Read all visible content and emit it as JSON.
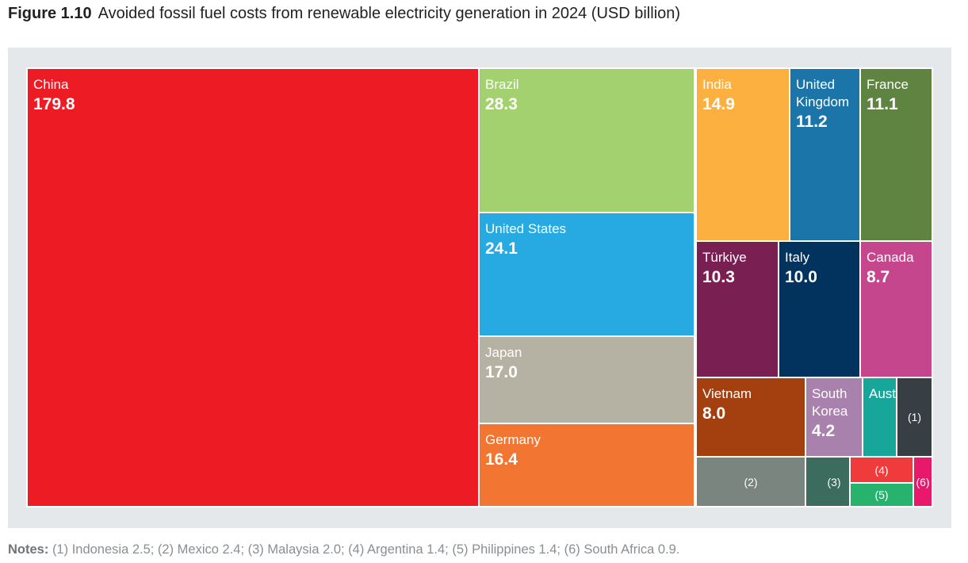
{
  "title": {
    "figure_label": "Figure 1.10",
    "text": "Avoided fossil fuel costs from renewable electricity generation in 2024 (USD billion)"
  },
  "notes": {
    "label": "Notes:",
    "text": "(1) Indonesia 2.5; (2) Mexico 2.4; (3) Malaysia 2.0; (4) Argentina 1.4; (5) Philippines 1.4; (6) South Africa 0.9."
  },
  "chart_data": {
    "type": "treemap",
    "title": "Avoided fossil fuel costs from renewable electricity generation in 2024 (USD billion)",
    "unit": "USD billion",
    "items": [
      {
        "label": "China",
        "value": 179.8,
        "value_label": "179.8",
        "color": "#ed1c24"
      },
      {
        "label": "Brazil",
        "value": 28.3,
        "value_label": "28.3",
        "color": "#a3d16f"
      },
      {
        "label": "United States",
        "value": 24.1,
        "value_label": "24.1",
        "color": "#27a9e1"
      },
      {
        "label": "Japan",
        "value": 17.0,
        "value_label": "17.0",
        "color": "#b5b2a3"
      },
      {
        "label": "Germany",
        "value": 16.4,
        "value_label": "16.4",
        "color": "#f27531"
      },
      {
        "label": "India",
        "value": 14.9,
        "value_label": "14.9",
        "color": "#fbb040"
      },
      {
        "label": "United\nKingdom",
        "value": 11.2,
        "value_label": "11.2",
        "color": "#1b75a8"
      },
      {
        "label": "France",
        "value": 11.1,
        "value_label": "11.1",
        "color": "#5f8442"
      },
      {
        "label": "Türkiye",
        "value": 10.3,
        "value_label": "10.3",
        "color": "#7a1f52"
      },
      {
        "label": "Italy",
        "value": 10.0,
        "value_label": "10.0",
        "color": "#01335e"
      },
      {
        "label": "Canada",
        "value": 8.7,
        "value_label": "8.7",
        "color": "#c6468d"
      },
      {
        "label": "Vietnam",
        "value": 8.0,
        "value_label": "8.0",
        "color": "#a4400f"
      },
      {
        "label": "South\nKorea",
        "value": 4.2,
        "value_label": "4.2",
        "color": "#a881ad"
      },
      {
        "label": "Australia",
        "value": null,
        "value_label": "",
        "color": "#17a69a"
      },
      {
        "label": "(1)",
        "value": 2.5,
        "value_label": "",
        "color": "#373f45"
      },
      {
        "label": "(2)",
        "value": 2.4,
        "value_label": "",
        "color": "#7a857f"
      },
      {
        "label": "(3)",
        "value": 2.0,
        "value_label": "",
        "color": "#3b6c5e"
      },
      {
        "label": "(4)",
        "value": 1.4,
        "value_label": "",
        "color": "#ef3b3b"
      },
      {
        "label": "(5)",
        "value": 1.4,
        "value_label": "",
        "color": "#27b36d"
      },
      {
        "label": "(6)",
        "value": 0.9,
        "value_label": "",
        "color": "#e8186b"
      }
    ]
  }
}
